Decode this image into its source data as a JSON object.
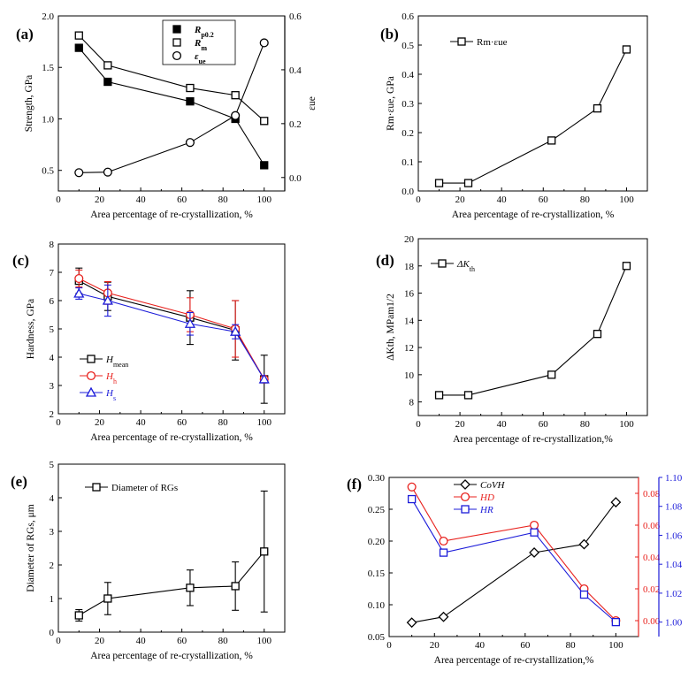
{
  "chart_data": [
    {
      "id": "a",
      "panel_label": "(a)",
      "type": "line",
      "xlabel": "Area percentage of re-crystallization, %",
      "ylabel": "Strength, GPa",
      "ylabel_right": "εue",
      "xlim": [
        0,
        110
      ],
      "ylim": [
        0.3,
        2.0
      ],
      "ylim_right": [
        -0.05,
        0.6
      ],
      "xticks": [
        0,
        20,
        40,
        60,
        80,
        100
      ],
      "yticks": [
        0.5,
        1.0,
        1.5,
        2.0
      ],
      "ytick_labels": [
        "0.5",
        "1.0",
        "1.5",
        "2.0"
      ],
      "yticks_right": [
        0.0,
        0.2,
        0.4,
        0.6
      ],
      "ytick_labels_right": [
        "0.0",
        "0.2",
        "0.4",
        "0.6"
      ],
      "legend_position": "top-center",
      "series": [
        {
          "name": "Rp0.2",
          "legend_main": "R",
          "legend_sub": "p0.2",
          "color": "#000000",
          "marker": "square-filled",
          "axis": "left",
          "x": [
            10,
            24,
            64,
            86,
            100
          ],
          "values": [
            1.69,
            1.36,
            1.17,
            1.0,
            0.55
          ]
        },
        {
          "name": "Rm",
          "legend_main": "R",
          "legend_sub": "m",
          "color": "#000000",
          "marker": "square-open",
          "axis": "left",
          "x": [
            10,
            24,
            64,
            86,
            100
          ],
          "values": [
            1.81,
            1.52,
            1.3,
            1.23,
            0.98
          ]
        },
        {
          "name": "εue",
          "legend_main": "ε",
          "legend_sub": "ue",
          "color": "#000000",
          "marker": "circle-open",
          "axis": "right",
          "x": [
            10,
            24,
            64,
            86,
            100
          ],
          "values": [
            0.018,
            0.02,
            0.13,
            0.23,
            0.5
          ]
        }
      ]
    },
    {
      "id": "b",
      "panel_label": "(b)",
      "type": "line",
      "xlabel": "Area percentage of re-crystallization, %",
      "ylabel": "Rm·εue, GPa",
      "xlim": [
        0,
        110
      ],
      "ylim": [
        0,
        0.6
      ],
      "xticks": [
        0,
        20,
        40,
        60,
        80,
        100
      ],
      "yticks": [
        0,
        0.1,
        0.2,
        0.3,
        0.4,
        0.5,
        0.6
      ],
      "ytick_labels": [
        "0.0",
        "0.1",
        "0.2",
        "0.3",
        "0.4",
        "0.5",
        "0.6"
      ],
      "legend_position": "top-left",
      "series": [
        {
          "name": "Rm·εue",
          "legend_main": "Rm·εue",
          "color": "#000000",
          "marker": "square-open",
          "x": [
            10,
            24,
            64,
            86,
            100
          ],
          "values": [
            0.027,
            0.027,
            0.173,
            0.283,
            0.485
          ]
        }
      ]
    },
    {
      "id": "c",
      "panel_label": "(c)",
      "type": "line",
      "xlabel": "Area percentage of re-crystallization, %",
      "ylabel": "Hardness, GPa",
      "xlim": [
        0,
        110
      ],
      "ylim": [
        2,
        8
      ],
      "xticks": [
        0,
        20,
        40,
        60,
        80,
        100
      ],
      "yticks": [
        2,
        3,
        4,
        5,
        6,
        7,
        8
      ],
      "ytick_labels": [
        "2",
        "3",
        "4",
        "5",
        "6",
        "7",
        "8"
      ],
      "legend_position": "bottom-left",
      "series": [
        {
          "name": "Hmean",
          "legend_main": "H",
          "legend_sub": "mean",
          "color": "#000000",
          "marker": "square-open",
          "x": [
            10,
            24,
            64,
            86,
            100
          ],
          "values": [
            6.7,
            6.15,
            5.4,
            4.95,
            3.22
          ],
          "errors": [
            0.45,
            0.5,
            0.95,
            1.05,
            0.85
          ]
        },
        {
          "name": "Hh",
          "legend_main": "H",
          "legend_sub": "h",
          "color": "#e8221e",
          "marker": "circle-open",
          "x": [
            10,
            24,
            64,
            86,
            100
          ],
          "values": [
            6.78,
            6.27,
            5.5,
            5.0,
            3.22
          ],
          "errors": [
            0.3,
            0.4,
            0.6,
            1.0,
            0.0
          ]
        },
        {
          "name": "Hs",
          "legend_main": "H",
          "legend_sub": "s",
          "color": "#1c1cd9",
          "marker": "triangle-open",
          "x": [
            10,
            24,
            64,
            86,
            100
          ],
          "values": [
            6.25,
            6.0,
            5.18,
            4.9,
            3.22
          ],
          "errors": [
            0.2,
            0.55,
            0.4,
            0.25,
            0.0
          ]
        }
      ]
    },
    {
      "id": "d",
      "panel_label": "(d)",
      "type": "line",
      "xlabel": "Area percentage of re-crystallization,%",
      "ylabel": "ΔKth, MPam1/2",
      "xlim": [
        0,
        110
      ],
      "ylim": [
        7,
        20
      ],
      "xticks": [
        0,
        20,
        40,
        60,
        80,
        100
      ],
      "yticks": [
        8,
        10,
        12,
        14,
        16,
        18,
        20
      ],
      "ytick_labels": [
        "8",
        "10",
        "12",
        "14",
        "16",
        "18",
        "20"
      ],
      "legend_position": "top-left",
      "series": [
        {
          "name": "ΔKth",
          "legend_main": "ΔK",
          "legend_sub": "th",
          "color": "#000000",
          "marker": "square-open",
          "x": [
            10,
            24,
            64,
            86,
            100
          ],
          "values": [
            8.5,
            8.5,
            10.0,
            13.0,
            18.0
          ]
        }
      ]
    },
    {
      "id": "e",
      "panel_label": "(e)",
      "type": "line",
      "xlabel": "Area percentage of re-crystallization, %",
      "ylabel": "Diameter of RGs, μm",
      "xlim": [
        0,
        110
      ],
      "ylim": [
        0,
        5
      ],
      "xticks": [
        0,
        20,
        40,
        60,
        80,
        100
      ],
      "yticks": [
        0,
        1,
        2,
        3,
        4,
        5
      ],
      "ytick_labels": [
        "0",
        "1",
        "2",
        "3",
        "4",
        "5"
      ],
      "legend_position": "top-left",
      "series": [
        {
          "name": "Diameter of RGs",
          "legend_main": "Diameter of RGs",
          "color": "#000000",
          "marker": "square-open",
          "x": [
            10,
            24,
            64,
            86,
            100
          ],
          "values": [
            0.5,
            1.0,
            1.32,
            1.37,
            2.4
          ],
          "errors": [
            0.17,
            0.48,
            0.53,
            0.72,
            1.8
          ]
        }
      ]
    },
    {
      "id": "f",
      "panel_label": "(f)",
      "type": "line",
      "xlabel": "Area percentage of re-crystallization,%",
      "ylabel": "",
      "xlim": [
        0,
        110
      ],
      "ylim": [
        0.05,
        0.3
      ],
      "xticks": [
        0,
        20,
        40,
        60,
        80,
        100
      ],
      "yticks": [
        0.05,
        0.1,
        0.15,
        0.2,
        0.25,
        0.3
      ],
      "ytick_labels": [
        "0.05",
        "0.10",
        "0.15",
        "0.20",
        "0.25",
        "0.30"
      ],
      "ylim_right": [
        -0.01,
        0.09
      ],
      "yticks_right": [
        0.0,
        0.02,
        0.04,
        0.06,
        0.08
      ],
      "ytick_labels_right": [
        "0.00",
        "0.02",
        "0.04",
        "0.06",
        "0.08"
      ],
      "ylim_right2": [
        0.99,
        1.1
      ],
      "yticks_right2": [
        1.0,
        1.02,
        1.04,
        1.06,
        1.08,
        1.1
      ],
      "ytick_labels_right2": [
        "1.00",
        "1.02",
        "1.04",
        "1.06",
        "1.08",
        "1.10"
      ],
      "legend_position": "top-center",
      "series": [
        {
          "name": "CoVH",
          "legend_main": "CoVH",
          "color": "#000000",
          "marker": "diamond-open",
          "axis": "left",
          "x": [
            10,
            24,
            64,
            86,
            100
          ],
          "values": [
            0.072,
            0.081,
            0.182,
            0.195,
            0.261
          ]
        },
        {
          "name": "HD",
          "legend_main": "HD",
          "color": "#e8221e",
          "marker": "circle-open",
          "axis": "right",
          "x": [
            10,
            24,
            64,
            86,
            100
          ],
          "values": [
            0.084,
            0.05,
            0.06,
            0.02,
            0.0
          ]
        },
        {
          "name": "HR",
          "legend_main": "HR",
          "color": "#1c1cd9",
          "marker": "square-open",
          "axis": "right2",
          "x": [
            10,
            24,
            64,
            86,
            100
          ],
          "values": [
            1.085,
            1.048,
            1.062,
            1.019,
            1.0
          ]
        }
      ]
    }
  ]
}
